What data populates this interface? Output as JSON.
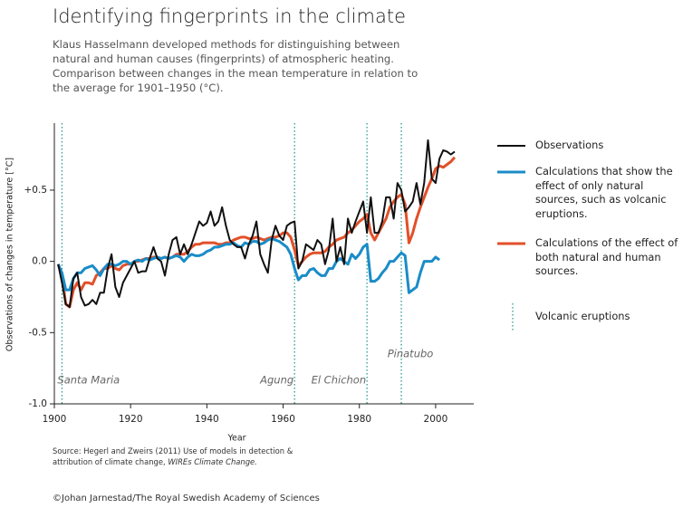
{
  "chart_data": {
    "type": "line",
    "title": "Identifying fingerprints in the climate",
    "subtitle": "Klaus Hasselmann developed methods for distinguishing between natural and human causes (fingerprints) of atmospheric heating. Comparison between changes in the mean temperature in relation to the average for 1901–1950 (°C).",
    "x_label": "Year",
    "y_label": "Observations of changes in temperature [°C]",
    "xlim": [
      1900,
      2010
    ],
    "xticks": [
      1900,
      1920,
      1940,
      1960,
      1980,
      2000
    ],
    "ylim": [
      -1.0,
      0.97
    ],
    "yticks": [
      {
        "value": -1.0,
        "label": "-1.0"
      },
      {
        "value": -0.5,
        "label": "-0.5"
      },
      {
        "value": 0,
        "label": "0.0"
      },
      {
        "value": 0.5,
        "label": "+0.5"
      }
    ],
    "x": [
      1901,
      1902,
      1903,
      1904,
      1905,
      1906,
      1907,
      1908,
      1909,
      1910,
      1911,
      1912,
      1913,
      1914,
      1915,
      1916,
      1917,
      1918,
      1919,
      1920,
      1921,
      1922,
      1923,
      1924,
      1925,
      1926,
      1927,
      1928,
      1929,
      1930,
      1931,
      1932,
      1933,
      1934,
      1935,
      1936,
      1937,
      1938,
      1939,
      1940,
      1941,
      1942,
      1943,
      1944,
      1945,
      1946,
      1947,
      1948,
      1949,
      1950,
      1951,
      1952,
      1953,
      1954,
      1955,
      1956,
      1957,
      1958,
      1959,
      1960,
      1961,
      1962,
      1963,
      1964,
      1965,
      1966,
      1967,
      1968,
      1969,
      1970,
      1971,
      1972,
      1973,
      1974,
      1975,
      1976,
      1977,
      1978,
      1979,
      1980,
      1981,
      1982,
      1983,
      1984,
      1985,
      1986,
      1987,
      1988,
      1989,
      1990,
      1991,
      1992,
      1993,
      1994,
      1995,
      1996,
      1997,
      1998,
      1999,
      2000,
      2001,
      2002,
      2003,
      2004,
      2005
    ],
    "series": [
      {
        "name": "Observations",
        "color": "#111111",
        "values": [
          -0.02,
          -0.15,
          -0.3,
          -0.32,
          -0.12,
          -0.08,
          -0.25,
          -0.31,
          -0.3,
          -0.27,
          -0.3,
          -0.22,
          -0.22,
          -0.05,
          0.05,
          -0.18,
          -0.25,
          -0.15,
          -0.1,
          -0.05,
          0.0,
          -0.08,
          -0.07,
          -0.07,
          0.02,
          0.1,
          0.02,
          0.0,
          -0.1,
          0.05,
          0.15,
          0.17,
          0.05,
          0.12,
          0.05,
          0.12,
          0.2,
          0.28,
          0.25,
          0.27,
          0.35,
          0.25,
          0.28,
          0.38,
          0.25,
          0.15,
          0.12,
          0.1,
          0.1,
          0.02,
          0.12,
          0.18,
          0.28,
          0.05,
          -0.02,
          -0.08,
          0.15,
          0.25,
          0.18,
          0.15,
          0.25,
          0.27,
          0.28,
          -0.05,
          0.0,
          0.12,
          0.1,
          0.08,
          0.15,
          0.12,
          -0.02,
          0.08,
          0.3,
          0.0,
          0.1,
          -0.02,
          0.3,
          0.2,
          0.28,
          0.35,
          0.42,
          0.2,
          0.45,
          0.2,
          0.2,
          0.28,
          0.45,
          0.45,
          0.3,
          0.55,
          0.5,
          0.35,
          0.38,
          0.42,
          0.55,
          0.4,
          0.55,
          0.85,
          0.58,
          0.55,
          0.72,
          0.78,
          0.77,
          0.75,
          0.77
        ]
      },
      {
        "name": "Calculations that show the effect of only natural sources, such as volcanic eruptions.",
        "color": "#1a8cc8",
        "values": [
          -0.02,
          -0.08,
          -0.2,
          -0.2,
          -0.12,
          -0.08,
          -0.08,
          -0.05,
          -0.04,
          -0.03,
          -0.06,
          -0.1,
          -0.05,
          -0.02,
          -0.02,
          -0.03,
          -0.02,
          0.0,
          0.0,
          -0.02,
          0.0,
          0.01,
          0.0,
          0.02,
          0.01,
          0.02,
          0.03,
          0.02,
          0.03,
          0.02,
          0.03,
          0.04,
          0.03,
          0.0,
          0.03,
          0.05,
          0.04,
          0.04,
          0.05,
          0.07,
          0.08,
          0.1,
          0.1,
          0.11,
          0.12,
          0.12,
          0.13,
          0.11,
          0.1,
          0.13,
          0.12,
          0.14,
          0.14,
          0.12,
          0.13,
          0.15,
          0.16,
          0.15,
          0.14,
          0.12,
          0.1,
          0.05,
          -0.05,
          -0.13,
          -0.1,
          -0.1,
          -0.06,
          -0.05,
          -0.08,
          -0.1,
          -0.1,
          -0.05,
          -0.05,
          0.0,
          0.02,
          0.0,
          -0.02,
          0.05,
          0.02,
          0.05,
          0.1,
          0.12,
          -0.14,
          -0.14,
          -0.12,
          -0.08,
          -0.05,
          0.0,
          0.0,
          0.03,
          0.06,
          0.04,
          -0.22,
          -0.2,
          -0.18,
          -0.08,
          0.0,
          0.0,
          0.0,
          0.03,
          0.01,
          null,
          null,
          null,
          null
        ]
      },
      {
        "name": "Calculations of the effect of both natural and human sources.",
        "color": "#e2502a",
        "values": [
          -0.02,
          -0.1,
          -0.3,
          -0.32,
          -0.2,
          -0.15,
          -0.2,
          -0.15,
          -0.15,
          -0.16,
          -0.1,
          -0.08,
          -0.05,
          -0.05,
          -0.03,
          -0.05,
          -0.06,
          -0.03,
          -0.02,
          -0.02,
          0.0,
          0.0,
          0.01,
          0.02,
          0.02,
          0.03,
          0.03,
          0.02,
          0.03,
          0.02,
          0.03,
          0.05,
          0.05,
          0.05,
          0.07,
          0.1,
          0.12,
          0.12,
          0.13,
          0.13,
          0.13,
          0.13,
          0.12,
          0.12,
          0.13,
          0.13,
          0.15,
          0.16,
          0.17,
          0.17,
          0.16,
          0.16,
          0.17,
          0.16,
          0.15,
          0.16,
          0.17,
          0.17,
          0.18,
          0.2,
          0.2,
          0.17,
          0.08,
          -0.03,
          0.0,
          0.03,
          0.05,
          0.06,
          0.06,
          0.06,
          0.07,
          0.1,
          0.12,
          0.15,
          0.16,
          0.17,
          0.2,
          0.22,
          0.25,
          0.28,
          0.3,
          0.33,
          0.2,
          0.15,
          0.2,
          0.25,
          0.3,
          0.38,
          0.42,
          0.45,
          0.47,
          0.4,
          0.13,
          0.2,
          0.3,
          0.38,
          0.45,
          0.52,
          0.58,
          0.65,
          0.67,
          0.66,
          0.68,
          0.7,
          0.73
        ]
      }
    ],
    "eruptions_legend": "Volcanic eruptions",
    "eruption_color": "#2a9d8f",
    "eruptions": [
      {
        "label": "Santa Maria",
        "x": 1902
      },
      {
        "label": "Agung",
        "x": 1963
      },
      {
        "label": "El Chichon",
        "x": 1982
      },
      {
        "label": "Pinatubo",
        "x": 1991
      }
    ],
    "source": "Source: Hegerl and Zweirs (2011) Use of models in detection & attribution of climate change, ",
    "source_italic": "WIREs Climate Change.",
    "credit": "©Johan Jarnestad/The Royal Swedish Academy of Sciences"
  }
}
